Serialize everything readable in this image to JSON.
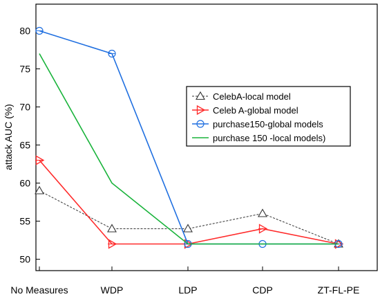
{
  "chart_data": {
    "type": "line",
    "categories": [
      "No Measures",
      "WDP",
      "LDP",
      "CDP",
      "ZT-FL-PE"
    ],
    "ylabel": "attack AUC (%)",
    "xlabel": "",
    "ylim": [
      48.5,
      83.5
    ],
    "yticks": [
      50,
      55,
      60,
      65,
      70,
      75,
      80
    ],
    "grid": false,
    "legend_position": "right",
    "series": [
      {
        "name": "CelebA-local model",
        "values": [
          59,
          54,
          54,
          56,
          52
        ],
        "color": "#333333",
        "line_style": "dashed",
        "marker": "triangle-up"
      },
      {
        "name": "Celeb A-global model",
        "values": [
          63,
          52,
          52,
          54,
          52
        ],
        "color": "#ff2a2a",
        "line_style": "solid",
        "marker": "triangle-right"
      },
      {
        "name": "purchase150-global models",
        "values": [
          80,
          77,
          52,
          52,
          52
        ],
        "color": "#1f6fe0",
        "line_style": "solid",
        "marker": "circle"
      },
      {
        "name": "purchase 150 -local models)",
        "values": [
          77,
          60,
          52,
          52,
          52
        ],
        "color": "#18b33a",
        "line_style": "solid",
        "marker": "none"
      }
    ]
  }
}
